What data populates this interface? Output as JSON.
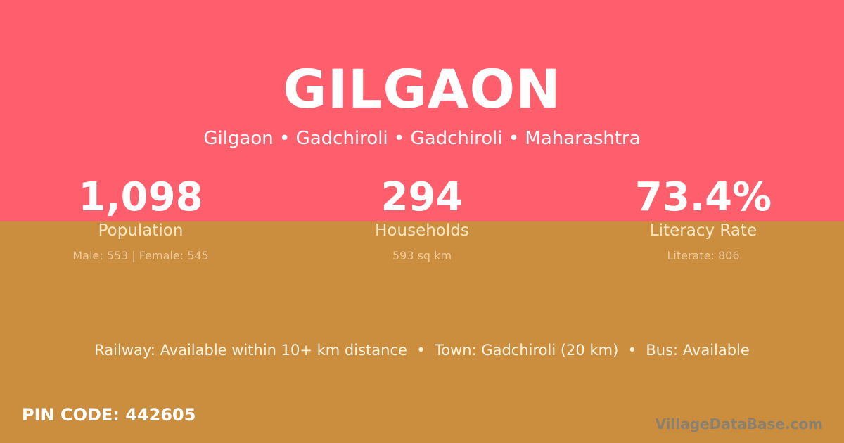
{
  "colors": {
    "top_bg": "#FF5F6D",
    "bottom_bg": "#CB8E3E"
  },
  "title": "GILGAON",
  "subtitle": "Gilgaon • Gadchiroli • Gadchiroli • Maharashtra",
  "stats": [
    {
      "value": "1,098",
      "label": "Population",
      "sub": "Male: 553 | Female: 545"
    },
    {
      "value": "294",
      "label": "Households",
      "sub": "593 sq km"
    },
    {
      "value": "73.4%",
      "label": "Literacy Rate",
      "sub": "Literate: 806"
    }
  ],
  "transport": "Railway: Available within 10+ km distance  •  Town: Gadchiroli (20 km)  •  Bus: Available",
  "pin": "PIN CODE: 442605",
  "brand": "VillageDataBase.com"
}
